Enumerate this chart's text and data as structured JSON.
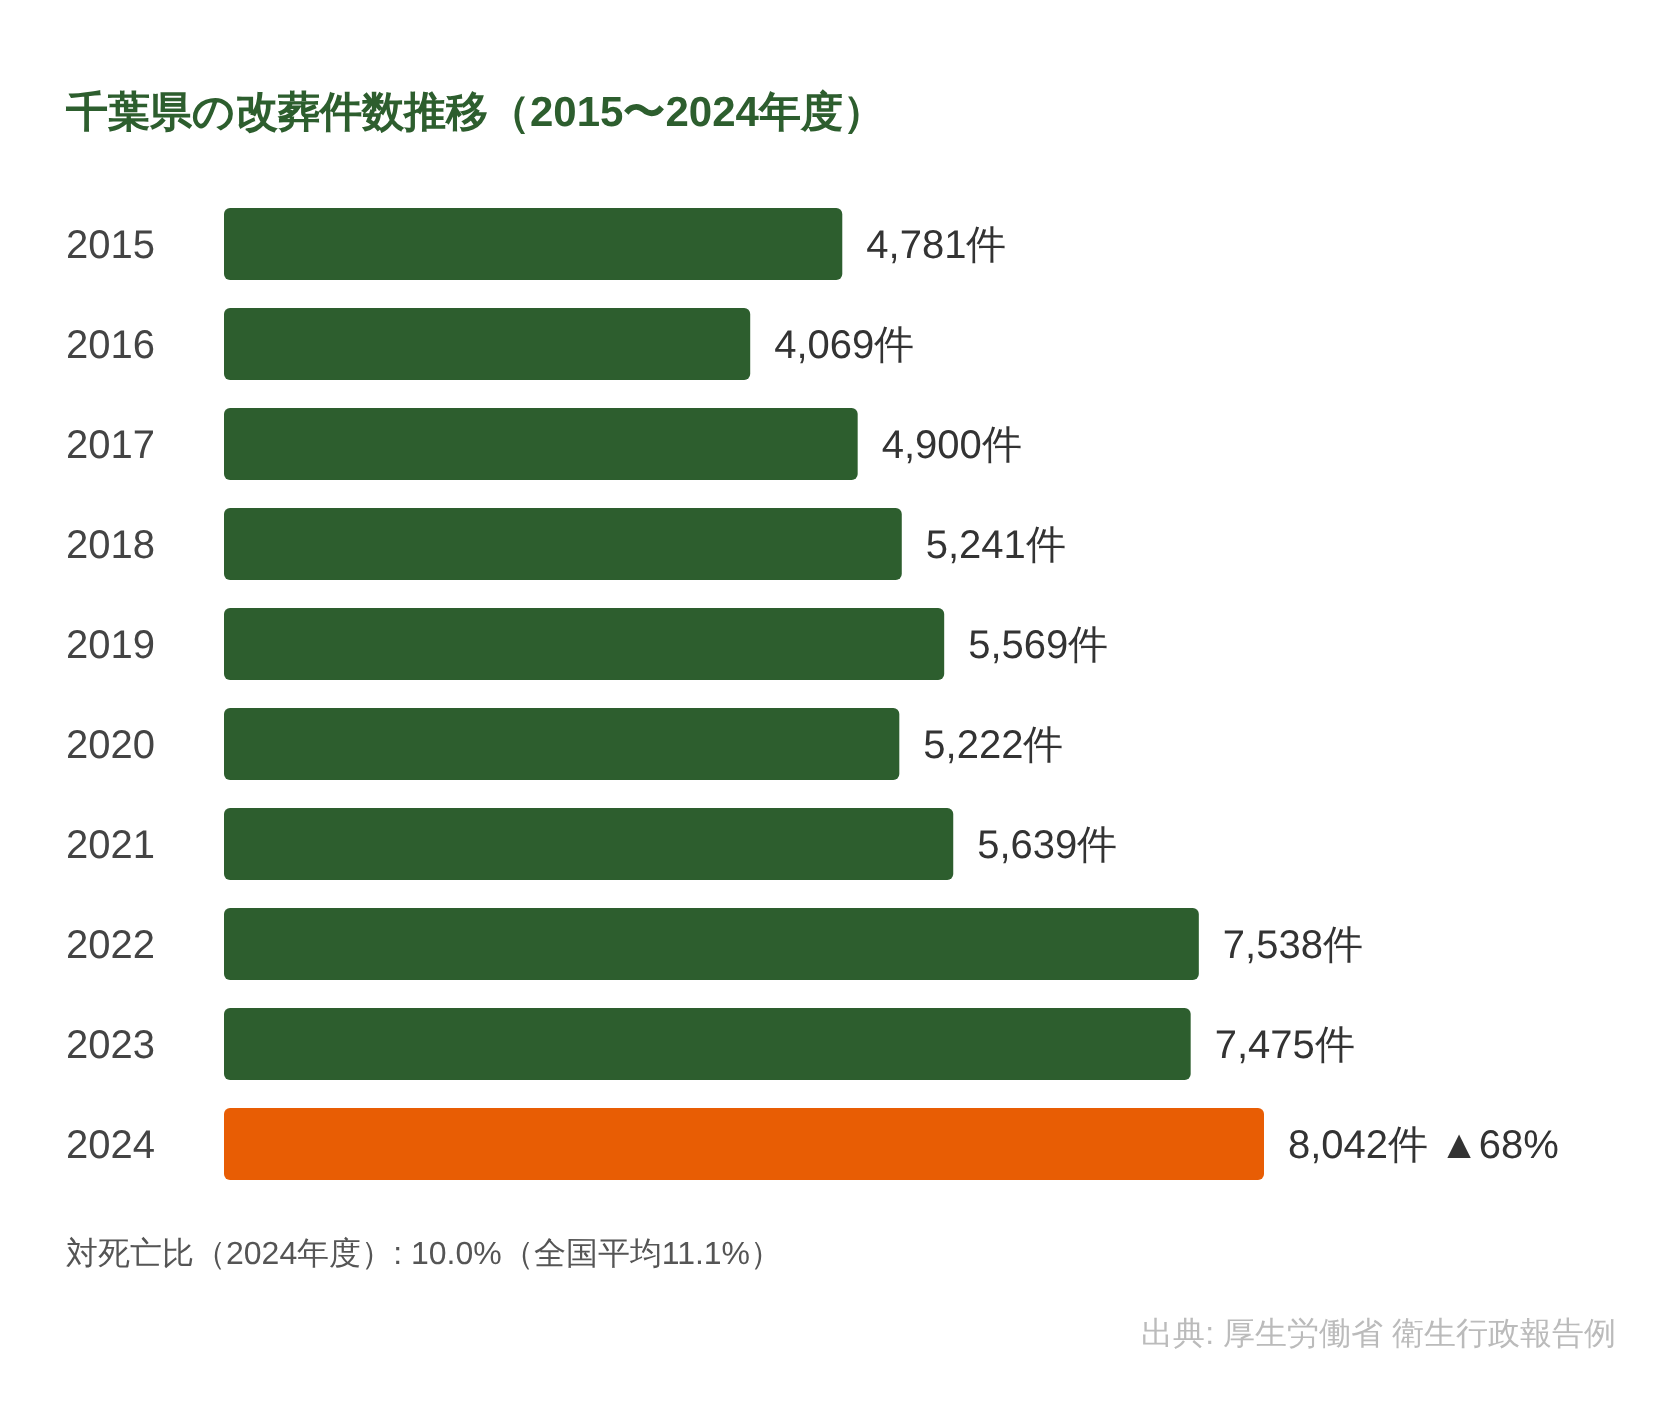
{
  "chart_data": {
    "type": "bar",
    "orientation": "horizontal",
    "title": "千葉県の改葬件数推移（2015〜2024年度）",
    "categories": [
      "2015",
      "2016",
      "2017",
      "2018",
      "2019",
      "2020",
      "2021",
      "2022",
      "2023",
      "2024"
    ],
    "values": [
      4781,
      4069,
      4900,
      5241,
      5569,
      5222,
      5639,
      7538,
      7475,
      8042
    ],
    "colors": [
      "#2d5e2e",
      "#2d5e2e",
      "#2d5e2e",
      "#2d5e2e",
      "#2d5e2e",
      "#2d5e2e",
      "#2d5e2e",
      "#2d5e2e",
      "#2d5e2e",
      "#e85d04"
    ],
    "value_labels": [
      "4,781件",
      "4,069件",
      "4,900件",
      "5,241件",
      "5,569件",
      "5,222件",
      "5,639件",
      "7,538件",
      "7,475件",
      "8,042件 ▲68%"
    ],
    "annotations": [
      "対死亡比（2024年度）: 10.0%（全国平均11.1%）",
      "出典: 厚生労働省 衛生行政報告例"
    ]
  }
}
